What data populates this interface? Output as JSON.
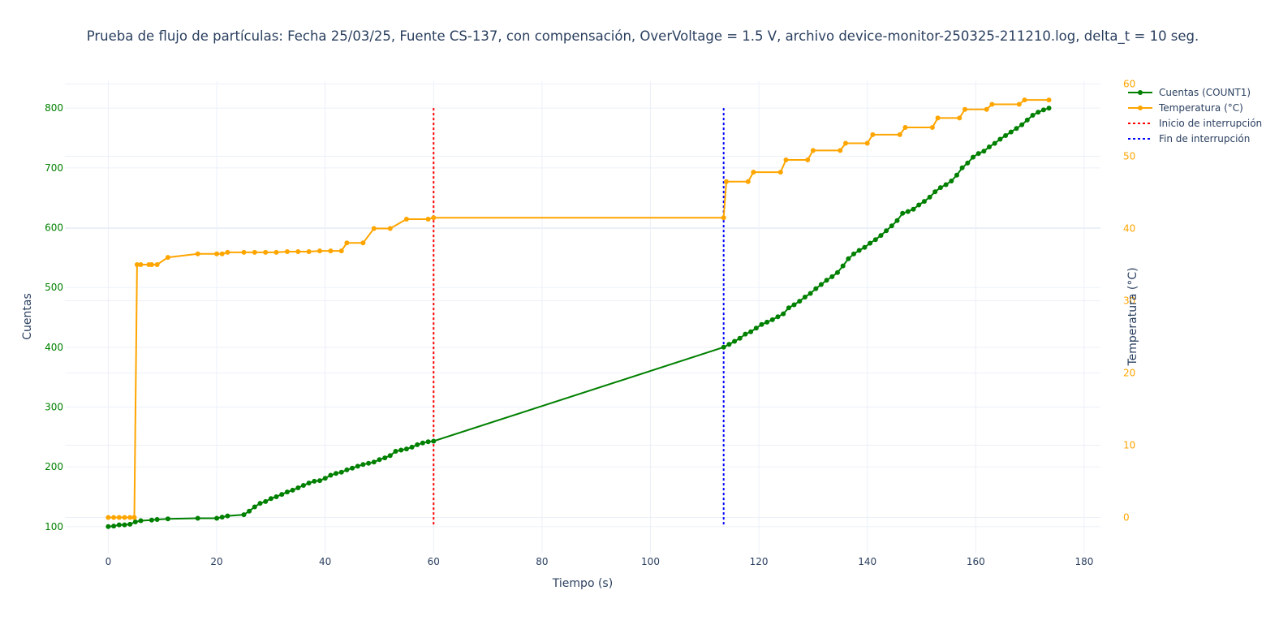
{
  "chart_data": {
    "type": "line",
    "title": "Prueba de flujo de partículas: Fecha 25/03/25, Fuente CS-137, con compensación, OverVoltage = 1.5 V, archivo device-monitor-250325-211210.log, delta_t = 10 seg.",
    "xlabel": "Tiempo (s)",
    "ylabel": "Cuentas",
    "y2label": "Temperatura (°C)",
    "xlim": [
      -8,
      183
    ],
    "ylim": [
      55,
      845
    ],
    "y2lim": [
      -5,
      60.4
    ],
    "x_ticks": [
      0,
      20,
      40,
      60,
      80,
      100,
      120,
      140,
      160,
      180
    ],
    "y_ticks": [
      100,
      200,
      300,
      400,
      500,
      600,
      700,
      800
    ],
    "y2_ticks": [
      0,
      10,
      20,
      30,
      40,
      50,
      60
    ],
    "grid": true,
    "legend_position": "top-right",
    "colors": {
      "counts": "#008000",
      "temperature": "#FFA500",
      "start": "#FF0000",
      "end": "#0000FF",
      "grid": "#ebf0f8",
      "text": "#2a3f5f"
    },
    "series": [
      {
        "name": "Cuentas (COUNT1)",
        "axis": "y",
        "color": "#008000",
        "points": [
          [
            0,
            100
          ],
          [
            1,
            101
          ],
          [
            2,
            103
          ],
          [
            3,
            103
          ],
          [
            4,
            104
          ],
          [
            5,
            108
          ],
          [
            6,
            110
          ],
          [
            8,
            111
          ],
          [
            9,
            112
          ],
          [
            11,
            113
          ],
          [
            16.5,
            114
          ],
          [
            20,
            114
          ],
          [
            21,
            116
          ],
          [
            22,
            118
          ],
          [
            25,
            120
          ],
          [
            26,
            126
          ],
          [
            27,
            133
          ],
          [
            28,
            139
          ],
          [
            29,
            142
          ],
          [
            30,
            147
          ],
          [
            31,
            150
          ],
          [
            32,
            154
          ],
          [
            33,
            158
          ],
          [
            34,
            161
          ],
          [
            35,
            165
          ],
          [
            36,
            169
          ],
          [
            37,
            173
          ],
          [
            38,
            176
          ],
          [
            39,
            177
          ],
          [
            40,
            181
          ],
          [
            41,
            186
          ],
          [
            42,
            189
          ],
          [
            43,
            191
          ],
          [
            44,
            195
          ],
          [
            45,
            198
          ],
          [
            46,
            201
          ],
          [
            47,
            204
          ],
          [
            48,
            206
          ],
          [
            49,
            208
          ],
          [
            50,
            212
          ],
          [
            51,
            215
          ],
          [
            52,
            219
          ],
          [
            53,
            226
          ],
          [
            54,
            228
          ],
          [
            55,
            230
          ],
          [
            56,
            233
          ],
          [
            57,
            237
          ],
          [
            58,
            240
          ],
          [
            59,
            242
          ],
          [
            60,
            243
          ],
          [
            113.5,
            400
          ],
          [
            114.5,
            405
          ],
          [
            115.5,
            410
          ],
          [
            116.5,
            415
          ],
          [
            117.5,
            422
          ],
          [
            118.5,
            426
          ],
          [
            119.5,
            432
          ],
          [
            120.5,
            438
          ],
          [
            121.5,
            442
          ],
          [
            122.5,
            446
          ],
          [
            123.5,
            451
          ],
          [
            124.5,
            456
          ],
          [
            125.5,
            466
          ],
          [
            126.5,
            471
          ],
          [
            127.5,
            477
          ],
          [
            128.5,
            484
          ],
          [
            129.5,
            490
          ],
          [
            130.5,
            498
          ],
          [
            131.5,
            505
          ],
          [
            132.5,
            512
          ],
          [
            133.5,
            518
          ],
          [
            134.5,
            525
          ],
          [
            135.5,
            536
          ],
          [
            136.5,
            548
          ],
          [
            137.5,
            556
          ],
          [
            138.5,
            562
          ],
          [
            139.5,
            567
          ],
          [
            140.5,
            574
          ],
          [
            141.5,
            580
          ],
          [
            142.5,
            587
          ],
          [
            143.5,
            595
          ],
          [
            144.5,
            603
          ],
          [
            145.5,
            612
          ],
          [
            146.5,
            624
          ],
          [
            147.5,
            627
          ],
          [
            148.5,
            631
          ],
          [
            149.5,
            638
          ],
          [
            150.5,
            644
          ],
          [
            151.5,
            651
          ],
          [
            152.5,
            660
          ],
          [
            153.5,
            667
          ],
          [
            154.5,
            672
          ],
          [
            155.5,
            678
          ],
          [
            156.5,
            688
          ],
          [
            157.5,
            700
          ],
          [
            158.5,
            708
          ],
          [
            159.5,
            718
          ],
          [
            160.5,
            724
          ],
          [
            161.5,
            728
          ],
          [
            162.5,
            735
          ],
          [
            163.5,
            741
          ],
          [
            164.5,
            748
          ],
          [
            165.5,
            754
          ],
          [
            166.5,
            760
          ],
          [
            167.5,
            766
          ],
          [
            168.5,
            772
          ],
          [
            169.5,
            780
          ],
          [
            170.5,
            788
          ],
          [
            171.5,
            793
          ],
          [
            172.5,
            797
          ],
          [
            173.5,
            800
          ]
        ]
      },
      {
        "name": "Temperatura (°C)",
        "axis": "y2",
        "color": "#FFA500",
        "points": [
          [
            0,
            0
          ],
          [
            1,
            0
          ],
          [
            2,
            0
          ],
          [
            3,
            0
          ],
          [
            4,
            0
          ],
          [
            4.8,
            0
          ],
          [
            5.3,
            35
          ],
          [
            6,
            35
          ],
          [
            7.5,
            35
          ],
          [
            8,
            35
          ],
          [
            9,
            35
          ],
          [
            11,
            36
          ],
          [
            16.5,
            36.5
          ],
          [
            20,
            36.5
          ],
          [
            21,
            36.5
          ],
          [
            22,
            36.7
          ],
          [
            25,
            36.7
          ],
          [
            27,
            36.7
          ],
          [
            29,
            36.7
          ],
          [
            31,
            36.7
          ],
          [
            33,
            36.8
          ],
          [
            35,
            36.8
          ],
          [
            37,
            36.8
          ],
          [
            39,
            36.9
          ],
          [
            41,
            36.9
          ],
          [
            43,
            36.9
          ],
          [
            44,
            38
          ],
          [
            47,
            38
          ],
          [
            49,
            40
          ],
          [
            52,
            40
          ],
          [
            55,
            41.3
          ],
          [
            59,
            41.3
          ],
          [
            60,
            41.5
          ],
          [
            113.5,
            41.5
          ],
          [
            114,
            46.5
          ],
          [
            118,
            46.5
          ],
          [
            119,
            47.8
          ],
          [
            124,
            47.8
          ],
          [
            125,
            49.5
          ],
          [
            129,
            49.5
          ],
          [
            130,
            50.8
          ],
          [
            135,
            50.8
          ],
          [
            136,
            51.8
          ],
          [
            140,
            51.8
          ],
          [
            141,
            53
          ],
          [
            146,
            53
          ],
          [
            147,
            54
          ],
          [
            152,
            54
          ],
          [
            153,
            55.3
          ],
          [
            157,
            55.3
          ],
          [
            158,
            56.5
          ],
          [
            162,
            56.5
          ],
          [
            163,
            57.2
          ],
          [
            168,
            57.2
          ],
          [
            169,
            57.8
          ],
          [
            173.5,
            57.8
          ]
        ]
      }
    ],
    "markers": [
      {
        "name": "Inicio de interrupción",
        "x": 60,
        "y_range": [
          100,
          800
        ],
        "color": "#FF0000",
        "dash": "dot"
      },
      {
        "name": "Fin de interrupción",
        "x": 113.5,
        "y_range": [
          100,
          800
        ],
        "color": "#0000FF",
        "dash": "dot"
      }
    ]
  }
}
